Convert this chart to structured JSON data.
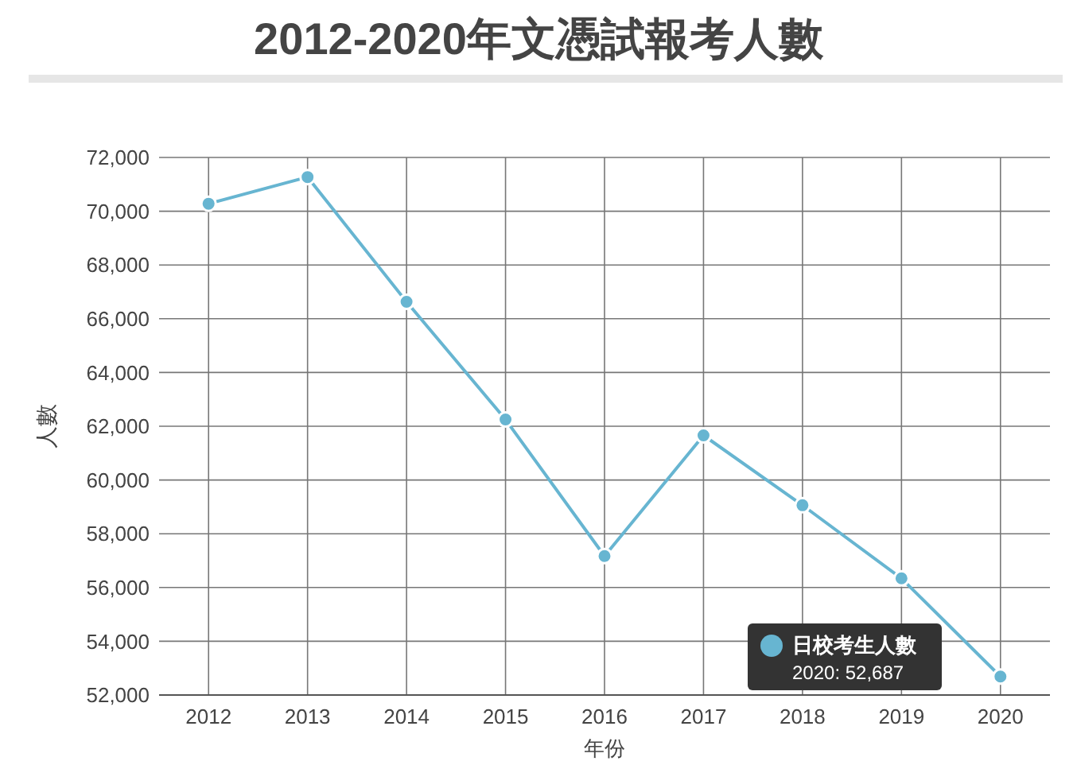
{
  "chart_data": {
    "type": "line",
    "title": "2012-2020年文憑試報考人數",
    "xlabel": "年份",
    "ylabel": "人數",
    "categories": [
      "2012",
      "2013",
      "2014",
      "2015",
      "2016",
      "2017",
      "2018",
      "2019",
      "2020"
    ],
    "series": [
      {
        "name": "日校考生人數",
        "color": "#67b5d1",
        "values": [
          70280,
          71270,
          66630,
          62250,
          57170,
          61660,
          59060,
          56340,
          52687
        ]
      }
    ],
    "ylim": [
      52000,
      72000
    ],
    "yticks": [
      {
        "value": 52000,
        "label": "52,000"
      },
      {
        "value": 54000,
        "label": "54,000"
      },
      {
        "value": 56000,
        "label": "56,000"
      },
      {
        "value": 58000,
        "label": "58,000"
      },
      {
        "value": 60000,
        "label": "60,000"
      },
      {
        "value": 62000,
        "label": "62,000"
      },
      {
        "value": 64000,
        "label": "64,000"
      },
      {
        "value": 66000,
        "label": "66,000"
      },
      {
        "value": 68000,
        "label": "68,000"
      },
      {
        "value": 70000,
        "label": "70,000"
      },
      {
        "value": 72000,
        "label": "72,000"
      }
    ],
    "annotations": [
      "2020: 52,687"
    ],
    "grid": true,
    "legend": "bottom right",
    "marker": "circle",
    "line_style": "solid"
  }
}
